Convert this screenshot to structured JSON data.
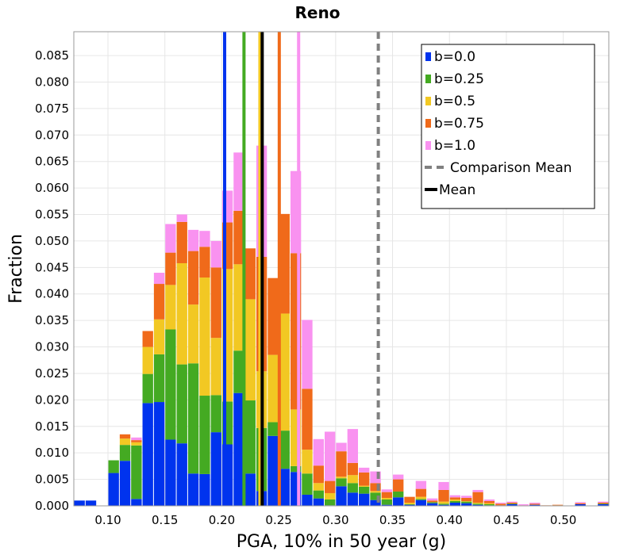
{
  "chart_data": {
    "type": "bar",
    "stacked": true,
    "title": "Reno",
    "xlabel": "PGA, 10% in 50 year (g)",
    "ylabel": "Fraction",
    "xlim": [
      0.07,
      0.54
    ],
    "ylim": [
      0.0,
      0.0895
    ],
    "grid": true,
    "legend_position": "top-right",
    "bin_width": 0.01,
    "x_ticks": [
      "0.10",
      "0.15",
      "0.20",
      "0.25",
      "0.30",
      "0.35",
      "0.40",
      "0.45",
      "0.50"
    ],
    "x_tick_values": [
      0.1,
      0.15,
      0.2,
      0.25,
      0.3,
      0.35,
      0.4,
      0.45,
      0.5
    ],
    "y_ticks": [
      "0.000",
      "0.005",
      "0.010",
      "0.015",
      "0.020",
      "0.025",
      "0.030",
      "0.035",
      "0.040",
      "0.045",
      "0.050",
      "0.055",
      "0.060",
      "0.065",
      "0.070",
      "0.075",
      "0.080",
      "0.085"
    ],
    "y_tick_values": [
      0.0,
      0.005,
      0.01,
      0.015,
      0.02,
      0.025,
      0.03,
      0.035,
      0.04,
      0.045,
      0.05,
      0.055,
      0.06,
      0.065,
      0.07,
      0.075,
      0.08,
      0.085
    ],
    "x": [
      0.075,
      0.085,
      0.095,
      0.105,
      0.115,
      0.125,
      0.135,
      0.145,
      0.155,
      0.165,
      0.175,
      0.185,
      0.195,
      0.205,
      0.215,
      0.225,
      0.235,
      0.245,
      0.255,
      0.265,
      0.275,
      0.285,
      0.295,
      0.305,
      0.315,
      0.325,
      0.335,
      0.345,
      0.355,
      0.365,
      0.375,
      0.385,
      0.395,
      0.405,
      0.415,
      0.425,
      0.435,
      0.445,
      0.455,
      0.465,
      0.475,
      0.485,
      0.495,
      0.505,
      0.515,
      0.525,
      0.535
    ],
    "series": [
      {
        "name": "b=0.0",
        "color": "#0033ee",
        "values": [
          0.001,
          0.001,
          0.0,
          0.0062,
          0.0085,
          0.0013,
          0.0194,
          0.0196,
          0.0125,
          0.0118,
          0.0061,
          0.006,
          0.0139,
          0.0116,
          0.0213,
          0.0061,
          0.0028,
          0.0132,
          0.007,
          0.0064,
          0.0021,
          0.0014,
          0.0001,
          0.0037,
          0.0025,
          0.0023,
          0.0011,
          0.0002,
          0.0016,
          0.0002,
          0.0011,
          0.0005,
          0.0002,
          0.0006,
          0.0005,
          0.0002,
          0.0001,
          0.0001,
          0.0003,
          0.0,
          0.0002,
          0.0,
          0.0,
          0.0,
          0.0003,
          0.0,
          0.0003
        ]
      },
      {
        "name": "b=0.25",
        "color": "#44aa22",
        "values": [
          0.0,
          0.0,
          0.0,
          0.0024,
          0.003,
          0.0101,
          0.0055,
          0.009,
          0.0208,
          0.0149,
          0.0208,
          0.0148,
          0.007,
          0.0081,
          0.008,
          0.0138,
          0.0119,
          0.0026,
          0.0072,
          0.0011,
          0.004,
          0.0015,
          0.0011,
          0.0015,
          0.0018,
          0.0013,
          0.0014,
          0.001,
          0.0011,
          0.0001,
          0.0002,
          0.0002,
          0.0002,
          0.0003,
          0.0003,
          0.0002,
          0.0002,
          0.0,
          0.0001,
          0.0,
          0.0,
          0.0,
          0.0001,
          0.0,
          0.0,
          0.0,
          0.0001
        ]
      },
      {
        "name": "b=0.5",
        "color": "#f2c823",
        "values": [
          0.0,
          0.0,
          0.0,
          0.0,
          0.0012,
          0.0006,
          0.0051,
          0.0066,
          0.0084,
          0.0191,
          0.0111,
          0.0223,
          0.0108,
          0.025,
          0.0163,
          0.0191,
          0.0107,
          0.0127,
          0.0221,
          0.0107,
          0.0045,
          0.0014,
          0.0012,
          0.0003,
          0.0015,
          0.0002,
          0.0003,
          0.0003,
          0.0,
          0.0003,
          0.0004,
          0.0,
          0.0004,
          0.0003,
          0.0001,
          0.0002,
          0.0002,
          0.0,
          0.0,
          0.0,
          0.0,
          0.0,
          0.0,
          0.0,
          0.0,
          0.0,
          0.0
        ]
      },
      {
        "name": "b=0.75",
        "color": "#f06a1a",
        "values": [
          0.0,
          0.0,
          0.0,
          0.0,
          0.0008,
          0.0004,
          0.003,
          0.0067,
          0.0061,
          0.0078,
          0.0101,
          0.0058,
          0.0133,
          0.0088,
          0.0101,
          0.0096,
          0.0216,
          0.0145,
          0.0188,
          0.0295,
          0.0115,
          0.0033,
          0.0023,
          0.0048,
          0.0023,
          0.0025,
          0.0015,
          0.0011,
          0.0023,
          0.0011,
          0.0015,
          0.0003,
          0.0022,
          0.0004,
          0.0006,
          0.002,
          0.0004,
          0.0003,
          0.0002,
          0.0001,
          0.0002,
          0.0001,
          0.0001,
          0.0,
          0.0002,
          0.0,
          0.0002
        ]
      },
      {
        "name": "b=1.0",
        "color": "#f992f0",
        "values": [
          0.0,
          0.0,
          0.0,
          0.0,
          0.0,
          0.0005,
          0.0,
          0.0021,
          0.0054,
          0.0014,
          0.004,
          0.003,
          0.005,
          0.006,
          0.011,
          0.0,
          0.021,
          0.0,
          0.0,
          0.0155,
          0.013,
          0.005,
          0.0093,
          0.0016,
          0.0064,
          0.0009,
          0.0022,
          0.0005,
          0.0009,
          0.0,
          0.0015,
          0.0004,
          0.0015,
          0.0004,
          0.0004,
          0.0004,
          0.0003,
          0.0002,
          0.0002,
          0.0002,
          0.0002,
          0.0,
          0.0,
          0.0,
          0.0002,
          0.0,
          0.0002
        ]
      }
    ],
    "vertical_lines": [
      {
        "label": "",
        "x": 0.2025,
        "color": "#0033ee",
        "style": "solid"
      },
      {
        "label": "",
        "x": 0.2195,
        "color": "#44aa22",
        "style": "solid"
      },
      {
        "label": "",
        "x": 0.2335,
        "color": "#f2c823",
        "style": "solid"
      },
      {
        "label": "",
        "x": 0.2505,
        "color": "#f06a1a",
        "style": "solid"
      },
      {
        "label": "",
        "x": 0.2675,
        "color": "#f992f0",
        "style": "solid"
      },
      {
        "label": "Mean",
        "x": 0.2355,
        "color": "#000000",
        "style": "solid"
      },
      {
        "label": "Comparison Mean",
        "x": 0.3375,
        "color": "#808080",
        "style": "dashed"
      }
    ],
    "legend": [
      {
        "label": "b=0.0",
        "color": "#0033ee",
        "kind": "box"
      },
      {
        "label": "b=0.25",
        "color": "#44aa22",
        "kind": "box"
      },
      {
        "label": "b=0.5",
        "color": "#f2c823",
        "kind": "box"
      },
      {
        "label": "b=0.75",
        "color": "#f06a1a",
        "kind": "box"
      },
      {
        "label": "b=1.0",
        "color": "#f992f0",
        "kind": "box"
      },
      {
        "label": "Comparison Mean",
        "color": "#808080",
        "kind": "dashed"
      },
      {
        "label": "Mean",
        "color": "#000000",
        "kind": "line"
      }
    ]
  }
}
